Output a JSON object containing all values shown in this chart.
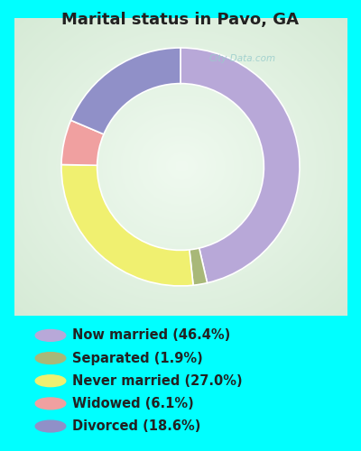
{
  "title": "Marital status in Pavo, GA",
  "title_fontsize": 13,
  "title_color": "#222222",
  "background_color": "#00FFFF",
  "slices": [
    {
      "label": "Now married (46.4%)",
      "value": 46.4,
      "color": "#b8a8d8"
    },
    {
      "label": "Separated (1.9%)",
      "value": 1.9,
      "color": "#a8b878"
    },
    {
      "label": "Never married (27.0%)",
      "value": 27.0,
      "color": "#f0f070"
    },
    {
      "label": "Widowed (6.1%)",
      "value": 6.1,
      "color": "#f0a0a0"
    },
    {
      "label": "Divorced (18.6%)",
      "value": 18.6,
      "color": "#9090c8"
    }
  ],
  "donut_width": 0.3,
  "legend_fontsize": 10.5,
  "watermark": "City-Data.com",
  "watermark_color": "#99cccc",
  "chart_center_color": "#f0f8f0",
  "chart_edge_color": "#c8e8c8",
  "chart_bg_left": "#c0dcc0",
  "chart_bg_right": "#e8f4e8"
}
